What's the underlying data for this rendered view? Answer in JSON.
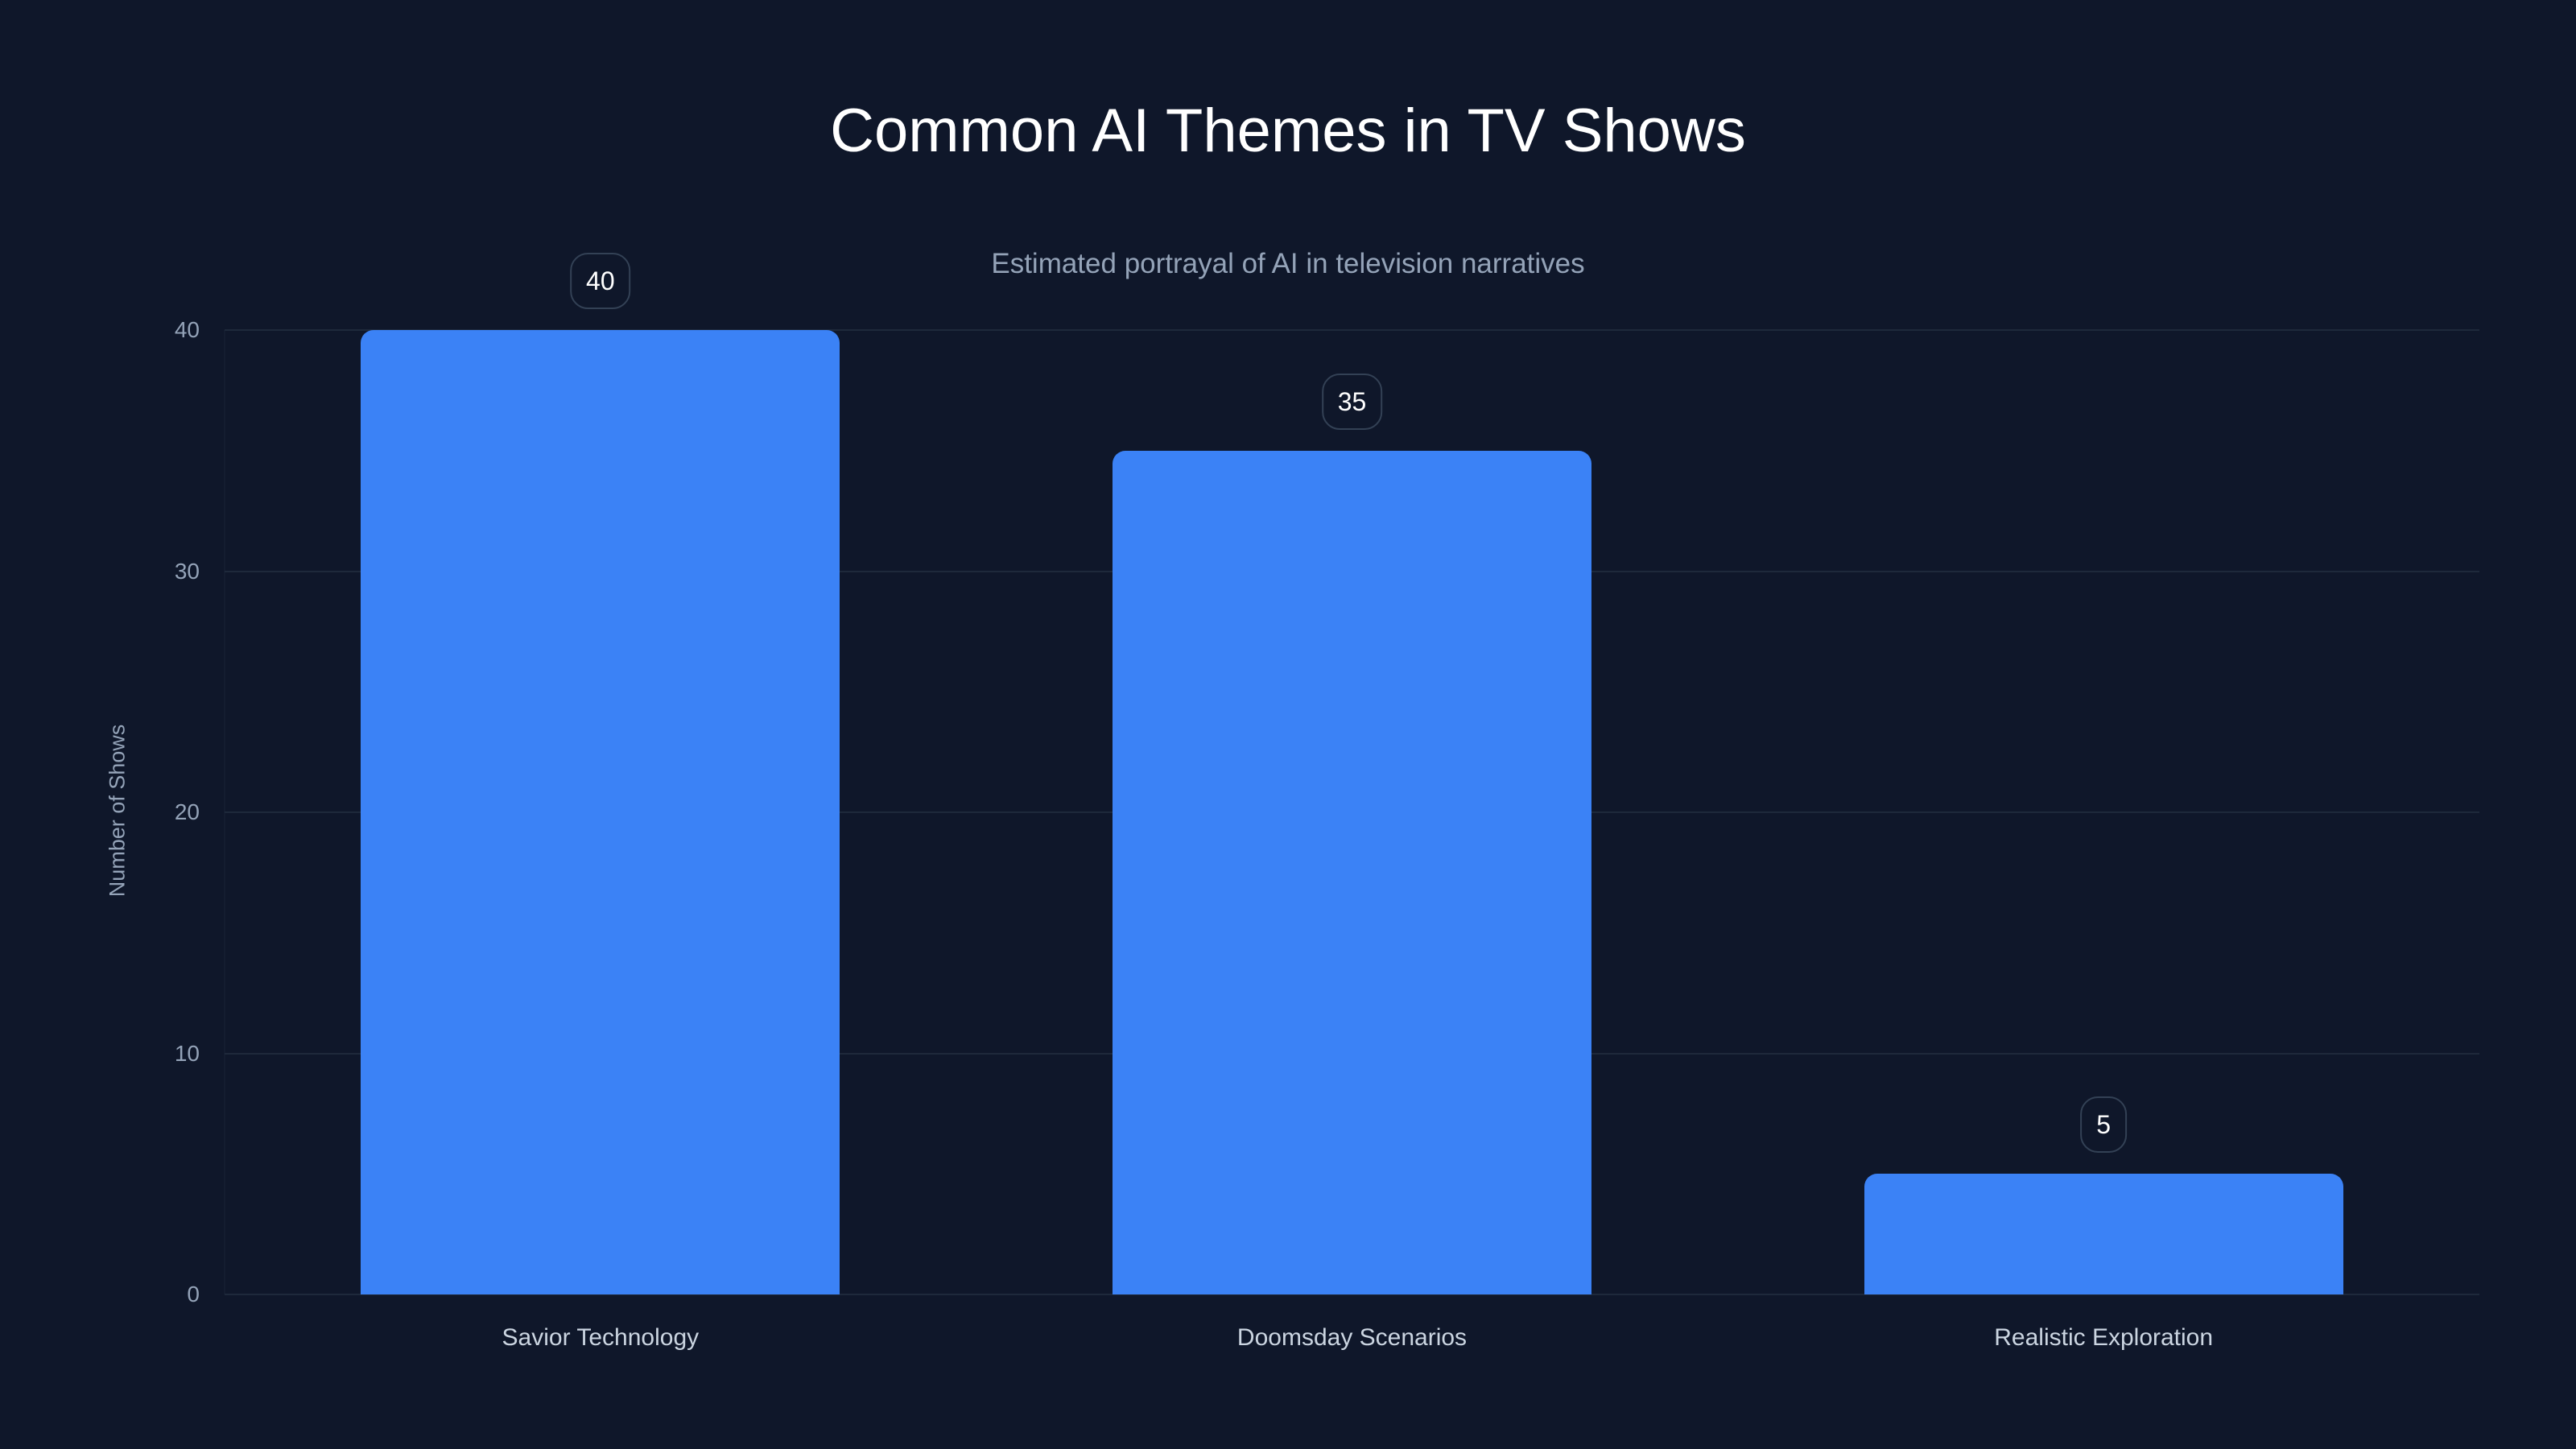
{
  "header": {
    "title": "Common AI Themes in TV Shows",
    "subtitle": "Estimated portrayal of AI in television narratives"
  },
  "axes": {
    "y_title": "Number of Shows",
    "y_ticks": [
      "0",
      "10",
      "20",
      "30",
      "40"
    ]
  },
  "bars": [
    {
      "category": "Savior Technology",
      "value": 40,
      "label": "40"
    },
    {
      "category": "Doomsday Scenarios",
      "value": 35,
      "label": "35"
    },
    {
      "category": "Realistic Exploration",
      "value": 5,
      "label": "5"
    }
  ],
  "colors": {
    "background": "#0f172a",
    "bar": "#3b82f6",
    "gridline": "#1e293b",
    "axis_text": "#94a3b8",
    "category_text": "#cbd5e1",
    "label_border": "#334155"
  },
  "chart_data": {
    "type": "bar",
    "title": "Common AI Themes in TV Shows",
    "subtitle": "Estimated portrayal of AI in television narratives",
    "categories": [
      "Savior Technology",
      "Doomsday Scenarios",
      "Realistic Exploration"
    ],
    "values": [
      40,
      35,
      5
    ],
    "xlabel": "",
    "ylabel": "Number of Shows",
    "ylim": [
      0,
      40
    ],
    "yticks": [
      0,
      10,
      20,
      30,
      40
    ],
    "grid": true,
    "data_labels": true,
    "legend": null
  }
}
